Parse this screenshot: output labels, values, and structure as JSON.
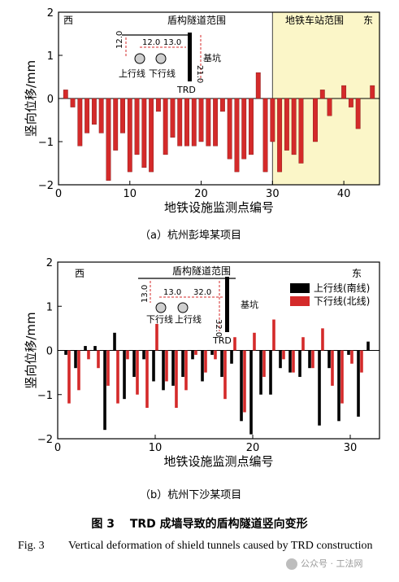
{
  "chart_data": [
    {
      "type": "bar",
      "ylabel": "竖向位移/mm",
      "xlabel": "地铁设施监测点编号",
      "xlim": [
        0,
        45
      ],
      "ylim": [
        -2,
        2
      ],
      "xticks": [
        0,
        10,
        20,
        30,
        40
      ],
      "yticks": [
        -2,
        -1,
        0,
        1,
        2
      ],
      "region_labels": {
        "west": "西",
        "east": "东",
        "tunnel": "盾构隧道范围",
        "station": "地铁车站范围"
      },
      "station_zone": {
        "x_start": 30,
        "x_end": 45,
        "color": "#fbf6c8"
      },
      "series": [
        {
          "color": "#d42a2a",
          "x": [
            1,
            2,
            3,
            4,
            5,
            6,
            7,
            8,
            9,
            10,
            11,
            12,
            13,
            14,
            15,
            16,
            17,
            18,
            19,
            20,
            21,
            22,
            23,
            24,
            25,
            26,
            27,
            28,
            29,
            30,
            31,
            32,
            33,
            34,
            35,
            36,
            37,
            38,
            39,
            40,
            41,
            42,
            43,
            44
          ],
          "values": [
            0.2,
            -0.2,
            -1.1,
            -0.8,
            -0.6,
            -0.8,
            -1.9,
            -1.2,
            -0.8,
            -1.7,
            -1.3,
            -1.6,
            -1.7,
            -0.3,
            -1.3,
            -0.9,
            -1.1,
            -1.1,
            -1.1,
            -1.0,
            -1.1,
            -1.1,
            -0.3,
            -1.4,
            -1.7,
            -1.4,
            -1.3,
            0.6,
            -1.7,
            -1.0,
            -1.7,
            -1.2,
            -1.3,
            -1.5,
            0.0,
            -1.0,
            0.2,
            -0.4,
            0.0,
            0.3,
            -0.2,
            -0.7,
            0.0,
            0.3
          ]
        }
      ],
      "schematic": {
        "dims": [
          "12.0",
          "12.0",
          "13.0",
          "21.0"
        ],
        "labels": {
          "up_line": "上行线",
          "down_line": "下行线",
          "pit": "基坑",
          "trd": "TRD"
        }
      },
      "caption": "（a）杭州彭埠某项目"
    },
    {
      "type": "bar",
      "ylabel": "竖向位移/mm",
      "xlabel": "地铁设施监测点编号",
      "xlim": [
        0,
        33
      ],
      "ylim": [
        -2,
        2
      ],
      "xticks": [
        0,
        10,
        20,
        30
      ],
      "yticks": [
        -2,
        -1,
        0,
        1,
        2
      ],
      "region_labels": {
        "west": "西",
        "east": "东",
        "tunnel": "盾构隧道范围"
      },
      "legend": {
        "position": "right"
      },
      "series": [
        {
          "name": "上行线(南线)",
          "color": "#000000",
          "x": [
            1,
            2,
            3,
            4,
            5,
            6,
            7,
            8,
            9,
            10,
            11,
            12,
            13,
            14,
            15,
            16,
            17,
            18,
            19,
            20,
            21,
            22,
            23,
            24,
            25,
            26,
            27,
            28,
            29,
            30,
            31,
            32,
            33
          ],
          "values": [
            -0.1,
            -0.4,
            0.1,
            0.1,
            -1.8,
            0.4,
            -1.1,
            -0.6,
            -0.2,
            -0.7,
            -0.9,
            -0.8,
            -0.6,
            -0.2,
            -0.7,
            -0.1,
            -0.6,
            -0.3,
            -1.6,
            -1.9,
            -1.0,
            -1.0,
            -0.4,
            -0.5,
            -0.6,
            -0.4,
            -1.7,
            -0.4,
            -1.6,
            -0.1,
            -1.5,
            0.2,
            0.0
          ]
        },
        {
          "name": "下行线(北线)",
          "color": "#d42a2a",
          "x": [
            1,
            2,
            3,
            4,
            5,
            6,
            7,
            8,
            9,
            10,
            11,
            12,
            13,
            14,
            15,
            16,
            17,
            18,
            19,
            20,
            21,
            22,
            23,
            24,
            25,
            26,
            27,
            28,
            29,
            30,
            31,
            32,
            33
          ],
          "values": [
            -1.2,
            -0.9,
            -0.2,
            -0.4,
            -0.8,
            -1.2,
            -0.2,
            -1.0,
            -1.3,
            0.6,
            -0.7,
            -1.3,
            -0.9,
            -0.1,
            -0.5,
            -0.2,
            -1.1,
            0.3,
            -1.4,
            0.4,
            -0.6,
            0.7,
            -0.2,
            -0.5,
            0.3,
            -0.4,
            0.5,
            -0.8,
            -1.2,
            -0.3,
            -0.5,
            0.0,
            0.0
          ]
        }
      ],
      "schematic": {
        "dims": [
          "13.0",
          "13.0",
          "32.0",
          "32.0"
        ],
        "labels": {
          "down_line": "下行线",
          "up_line": "上行线",
          "pit": "基坑",
          "trd": "TRD"
        }
      },
      "caption": "（b）杭州下沙某项目"
    }
  ],
  "figure": {
    "caption_cn": "图 3　 TRD 成墙导致的盾构隧道竖向变形",
    "label_en": "Fig. 3",
    "caption_en": "Vertical deformation of shield tunnels caused by TRD construction"
  },
  "watermark": "公众号 · 工法网"
}
